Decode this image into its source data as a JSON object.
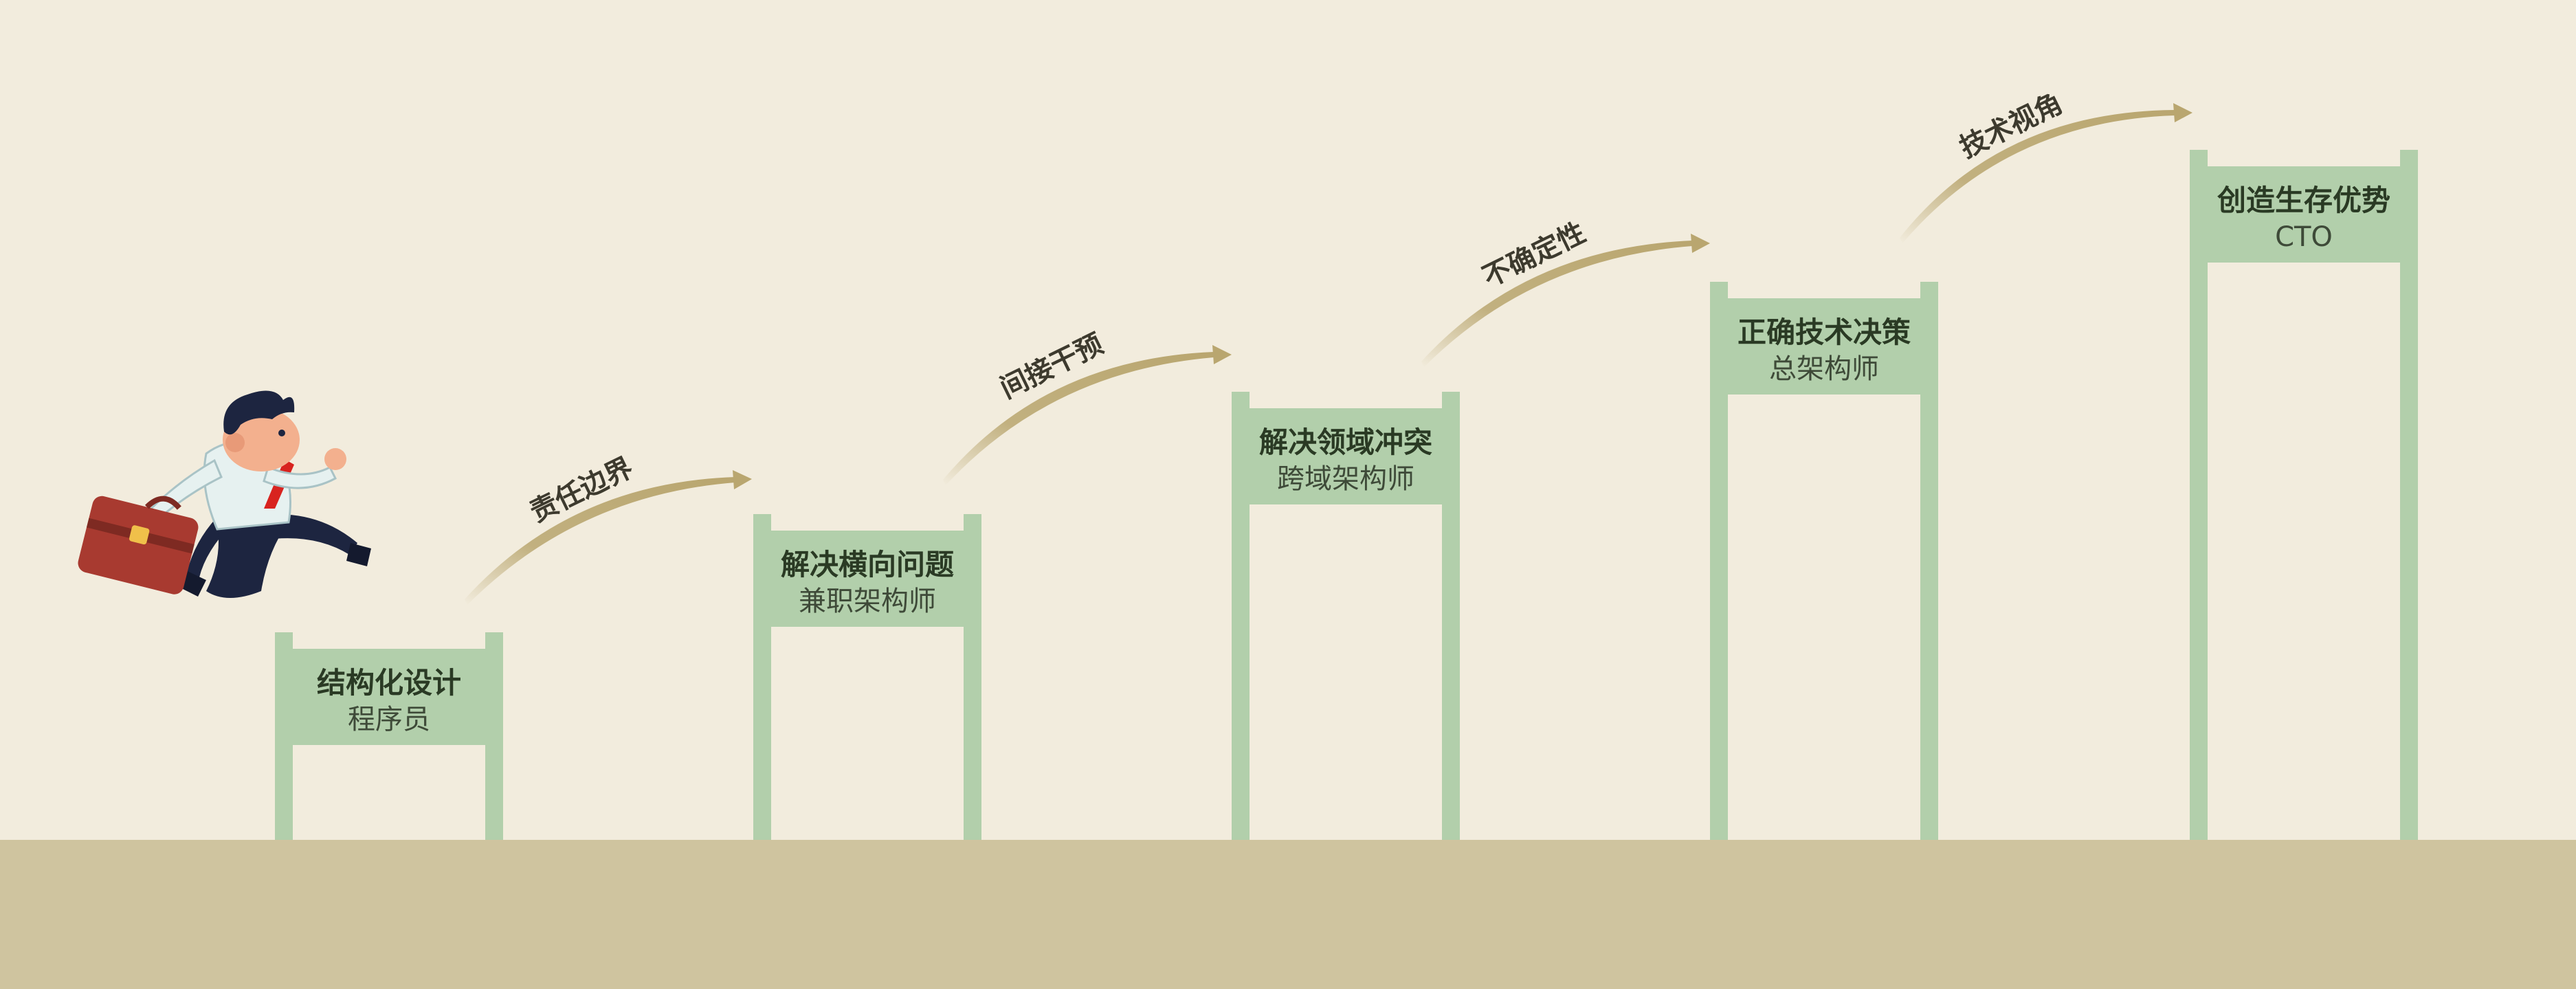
{
  "colors": {
    "background": "#f2ecdd",
    "ground": "#cfc49f",
    "post": "#b2cfab",
    "board": "#b2cfab",
    "arrow": "#b9a66f"
  },
  "steps": [
    {
      "title": "结构化设计",
      "role": "程序员"
    },
    {
      "title": "解决横向问题",
      "role": "兼职架构师"
    },
    {
      "title": "解决领域冲突",
      "role": "跨域架构师"
    },
    {
      "title": "正确技术决策",
      "role": "总架构师"
    },
    {
      "title": "创造生存优势",
      "role": "CTO"
    }
  ],
  "transitions": [
    {
      "label": "责任边界"
    },
    {
      "label": "间接干预"
    },
    {
      "label": "不确定性"
    },
    {
      "label": "技术视角"
    }
  ],
  "character": {
    "icon": "running-businessman-with-briefcase-icon"
  }
}
